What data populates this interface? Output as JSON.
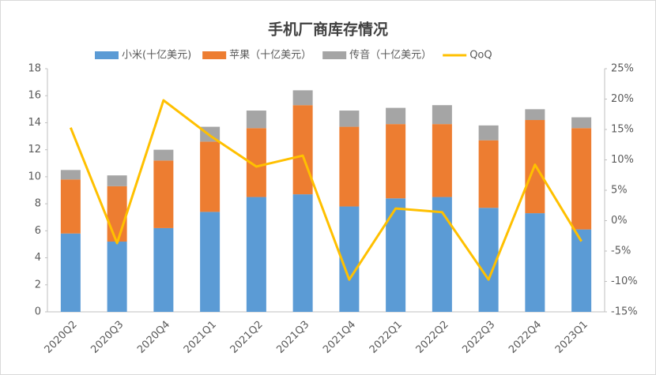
{
  "chart_data": {
    "type": "bar",
    "stacked": true,
    "title": "手机厂商库存情况",
    "categories": [
      "2020Q2",
      "2020Q3",
      "2020Q4",
      "2021Q1",
      "2021Q2",
      "2021Q3",
      "2021Q4",
      "2022Q1",
      "2022Q2",
      "2022Q3",
      "2022Q4",
      "2023Q1"
    ],
    "series": [
      {
        "name": "小米(十亿美元)",
        "color": "#5b9bd5",
        "values": [
          5.8,
          5.2,
          6.2,
          7.4,
          8.5,
          8.7,
          7.8,
          8.4,
          8.5,
          7.7,
          7.3,
          6.1
        ]
      },
      {
        "name": "苹果（十亿美元）",
        "color": "#ed7d31",
        "values": [
          4.0,
          4.1,
          5.0,
          5.2,
          5.1,
          6.6,
          5.9,
          5.5,
          5.4,
          5.0,
          6.9,
          7.5
        ]
      },
      {
        "name": "传音（十亿美元）",
        "color": "#a5a5a5",
        "values": [
          0.7,
          0.8,
          0.8,
          1.1,
          1.3,
          1.1,
          1.2,
          1.2,
          1.4,
          1.1,
          0.8,
          0.8
        ]
      },
      {
        "name": "QoQ",
        "color": "#ffc000",
        "type": "line",
        "axis": "y2",
        "values": [
          15.3,
          -3.7,
          19.8,
          14.0,
          8.9,
          10.7,
          -9.7,
          2.0,
          1.4,
          -9.7,
          9.2,
          -3.4
        ]
      }
    ],
    "ylim": [
      0,
      18
    ],
    "yticks": [
      0,
      2,
      4,
      6,
      8,
      10,
      12,
      14,
      16,
      18
    ],
    "y2lim": [
      -15,
      25
    ],
    "y2ticks": [
      {
        "value": -15,
        "label": "-15%"
      },
      {
        "value": -10,
        "label": "-10%"
      },
      {
        "value": -5,
        "label": "-5%"
      },
      {
        "value": 0,
        "label": "0%"
      },
      {
        "value": 5,
        "label": "5%"
      },
      {
        "value": 10,
        "label": "10%"
      },
      {
        "value": 15,
        "label": "15%"
      },
      {
        "value": 20,
        "label": "20%"
      },
      {
        "value": 25,
        "label": "25%"
      }
    ],
    "legend": "top"
  }
}
